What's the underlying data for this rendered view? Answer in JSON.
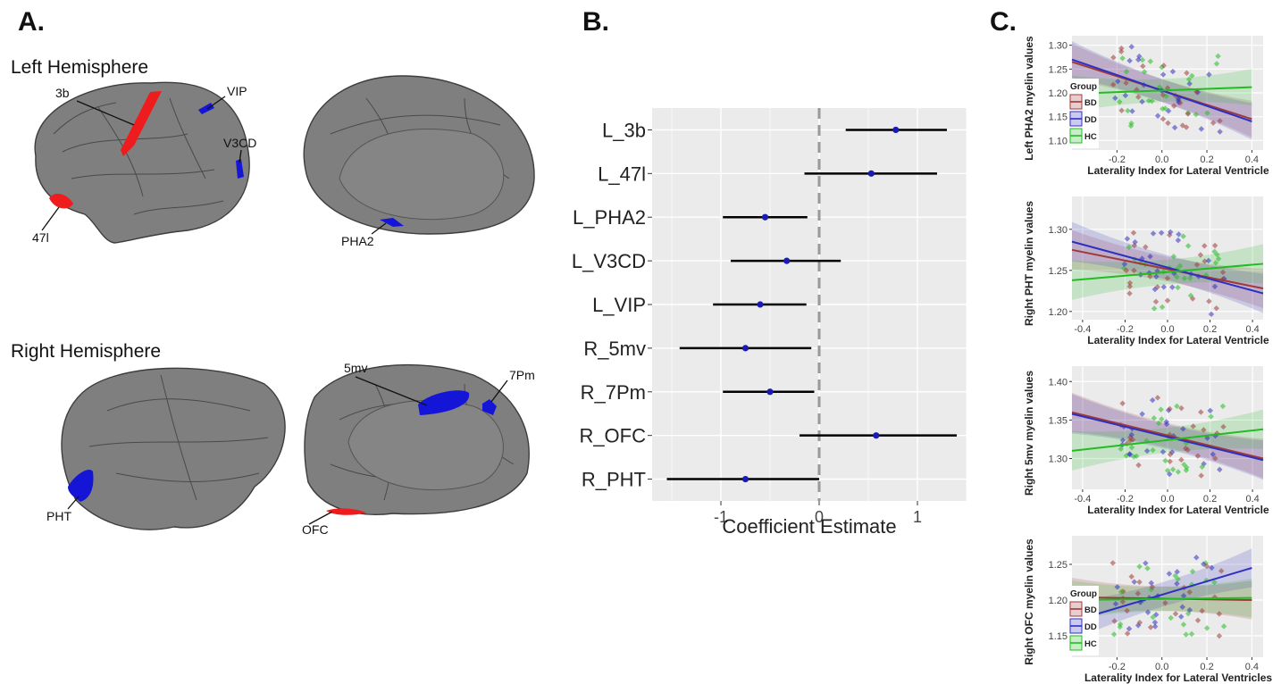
{
  "panels": {
    "a": "A.",
    "b": "B.",
    "c": "C."
  },
  "brain": {
    "left_title": "Left Hemisphere",
    "right_title": "Right Hemisphere",
    "labels": {
      "l3b": "3b",
      "vip": "VIP",
      "v3cd": "V3CD",
      "l47": "47l",
      "pha2": "PHA2",
      "mv5": "5mv",
      "pm7": "7Pm",
      "pht": "PHT",
      "ofc": "OFC"
    },
    "colors": {
      "cortex": "#7f7f7f",
      "red": "#ee1c1c",
      "blue": "#1515d8"
    }
  },
  "chart_data": [
    {
      "type": "forest",
      "xlabel": "Coefficient Estimate",
      "xlim": [
        -1.7,
        1.5
      ],
      "xticks": [
        -1,
        0,
        1
      ],
      "reference_line": 0,
      "rows": [
        {
          "label": "L_3b",
          "estimate": 0.78,
          "lower": 0.27,
          "upper": 1.3
        },
        {
          "label": "L_47l",
          "estimate": 0.53,
          "lower": -0.15,
          "upper": 1.2
        },
        {
          "label": "L_PHA2",
          "estimate": -0.55,
          "lower": -0.98,
          "upper": -0.12
        },
        {
          "label": "L_V3CD",
          "estimate": -0.33,
          "lower": -0.9,
          "upper": 0.22
        },
        {
          "label": "L_VIP",
          "estimate": -0.6,
          "lower": -1.08,
          "upper": -0.13
        },
        {
          "label": "R_5mv",
          "estimate": -0.75,
          "lower": -1.42,
          "upper": -0.08
        },
        {
          "label": "R_7Pm",
          "estimate": -0.5,
          "lower": -0.98,
          "upper": -0.05
        },
        {
          "label": "R_OFC",
          "estimate": 0.58,
          "lower": -0.2,
          "upper": 1.4
        },
        {
          "label": "R_PHT",
          "estimate": -0.75,
          "lower": -1.55,
          "upper": 0.0
        }
      ]
    },
    {
      "type": "scatter",
      "ylabel": "Left PHA2 myelin values",
      "xlabel": "Laterality Index for Lateral Ventricle",
      "xlim": [
        -0.4,
        0.45
      ],
      "ylim": [
        1.08,
        1.32
      ],
      "xticks": [
        "-0.2",
        "0.0",
        "0.2",
        "0.4"
      ],
      "yticks": [
        "1.10",
        "1.15",
        "1.20",
        "1.25",
        "1.30"
      ],
      "legend": {
        "title": "Group",
        "position": "left",
        "entries": [
          "BD",
          "DD",
          "HC"
        ]
      },
      "lines": [
        {
          "name": "BD",
          "x": [
            -0.4,
            0.4
          ],
          "y": [
            1.265,
            1.145
          ]
        },
        {
          "name": "DD",
          "x": [
            -0.4,
            0.4
          ],
          "y": [
            1.27,
            1.14
          ]
        },
        {
          "name": "HC",
          "x": [
            -0.4,
            0.4
          ],
          "y": [
            1.198,
            1.212
          ]
        }
      ]
    },
    {
      "type": "scatter",
      "ylabel": "Right PHT myelin values",
      "xlabel": "Laterality Index for Lateral Ventricle",
      "xlim": [
        -0.45,
        0.45
      ],
      "ylim": [
        1.19,
        1.34
      ],
      "xticks": [
        "-0.4",
        "-0.2",
        "0.0",
        "0.2",
        "0.4"
      ],
      "yticks": [
        "1.20",
        "1.25",
        "1.30"
      ],
      "lines": [
        {
          "name": "BD",
          "x": [
            -0.45,
            0.45
          ],
          "y": [
            1.275,
            1.228
          ]
        },
        {
          "name": "DD",
          "x": [
            -0.45,
            0.45
          ],
          "y": [
            1.285,
            1.222
          ]
        },
        {
          "name": "HC",
          "x": [
            -0.45,
            0.45
          ],
          "y": [
            1.238,
            1.258
          ]
        }
      ]
    },
    {
      "type": "scatter",
      "ylabel": "Right 5mv myelin values",
      "xlabel": "Laterality Index for Lateral Ventricle",
      "xlim": [
        -0.45,
        0.45
      ],
      "ylim": [
        1.26,
        1.42
      ],
      "xticks": [
        "-0.4",
        "-0.2",
        "0.0",
        "0.2",
        "0.4"
      ],
      "yticks": [
        "1.30",
        "1.35",
        "1.40"
      ],
      "lines": [
        {
          "name": "BD",
          "x": [
            -0.45,
            0.45
          ],
          "y": [
            1.36,
            1.3
          ]
        },
        {
          "name": "DD",
          "x": [
            -0.45,
            0.45
          ],
          "y": [
            1.358,
            1.298
          ]
        },
        {
          "name": "HC",
          "x": [
            -0.45,
            0.45
          ],
          "y": [
            1.31,
            1.338
          ]
        }
      ]
    },
    {
      "type": "scatter",
      "ylabel": "Right OFC myelin values",
      "xlabel": "Laterality Index for Lateral Ventricles",
      "xlim": [
        -0.4,
        0.45
      ],
      "ylim": [
        1.12,
        1.29
      ],
      "xticks": [
        "-0.2",
        "0.0",
        "0.2",
        "0.4"
      ],
      "yticks": [
        "1.15",
        "1.20",
        "1.25"
      ],
      "legend": {
        "title": "Group",
        "position": "left",
        "entries": [
          "BD",
          "DD",
          "HC"
        ]
      },
      "lines": [
        {
          "name": "BD",
          "x": [
            -0.4,
            0.4
          ],
          "y": [
            1.204,
            1.2
          ]
        },
        {
          "name": "DD",
          "x": [
            -0.4,
            0.4
          ],
          "y": [
            1.17,
            1.245
          ]
        },
        {
          "name": "HC",
          "x": [
            -0.4,
            0.4
          ],
          "y": [
            1.2,
            1.203
          ]
        }
      ]
    }
  ],
  "group_colors": {
    "BD": "#9e3a3a",
    "DD": "#2f2fc0",
    "HC": "#22bb22"
  }
}
